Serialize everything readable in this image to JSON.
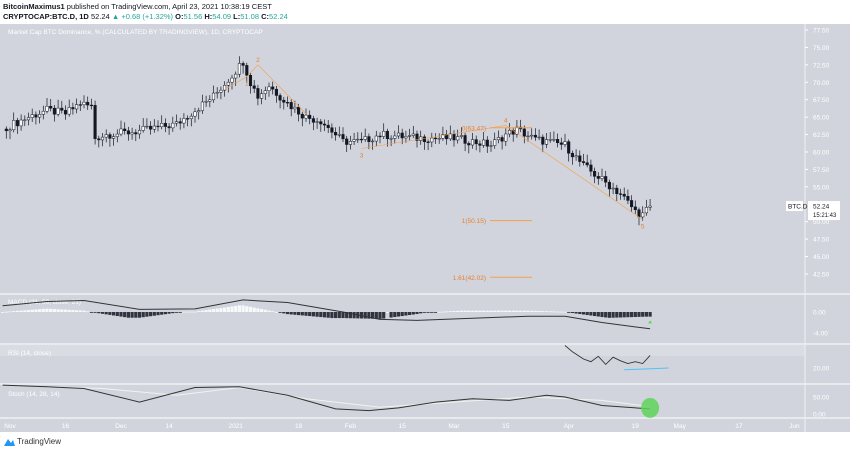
{
  "header": {
    "author": "BitcoinMaximus1",
    "published": "published on TradingView.com, April 23, 2021 10:38:19 CEST",
    "symbol": "CRYPTOCAP:BTC.D, 1D",
    "last": "52.24",
    "change": "+0.68 (+1.32%)",
    "o_label": "O:",
    "o": "51.56",
    "h_label": "H:",
    "h": "54.09",
    "l_label": "L:",
    "l": "51.08",
    "c_label": "C:",
    "c": "52.24"
  },
  "footer": {
    "brand": "TradingView"
  },
  "colors": {
    "bg": "#d1d4dc",
    "fib": "#f5a04b",
    "green": "#5fd35a",
    "blue": "#4fc3f7"
  },
  "chart_data": {
    "type": "candlestick",
    "title": "Market Cap BTC Dominance, % (CALCULATED BY TRADINGVIEW), 1D, CRYPTOCAP",
    "y_ticks": [
      "77.50",
      "75.00",
      "72.50",
      "70.00",
      "67.50",
      "65.00",
      "62.50",
      "60.00",
      "57.50",
      "55.00",
      "50.00",
      "47.50",
      "45.00",
      "42.50"
    ],
    "ylim": [
      42.5,
      77.5
    ],
    "price_label": {
      "symbol": "BTC.D",
      "value": "52.24",
      "countdown": "15:21:43"
    },
    "x_ticks": [
      {
        "label": "Nov",
        "d": 0
      },
      {
        "label": "16",
        "d": 15
      },
      {
        "label": "Dec",
        "d": 30
      },
      {
        "label": "14",
        "d": 43
      },
      {
        "label": "2021",
        "d": 61
      },
      {
        "label": "18",
        "d": 78
      },
      {
        "label": "Feb",
        "d": 92
      },
      {
        "label": "15",
        "d": 106
      },
      {
        "label": "Mar",
        "d": 120
      },
      {
        "label": "15",
        "d": 134
      },
      {
        "label": "Apr",
        "d": 151
      },
      {
        "label": "19",
        "d": 169
      },
      {
        "label": "May",
        "d": 181
      },
      {
        "label": "17",
        "d": 197
      },
      {
        "label": "Jun",
        "d": 212
      }
    ],
    "close_anchors": [
      [
        -2,
        63.3
      ],
      [
        5,
        65
      ],
      [
        10,
        66
      ],
      [
        15,
        65.5
      ],
      [
        19,
        67
      ],
      [
        22,
        66.5
      ],
      [
        23,
        62
      ],
      [
        26,
        62.5
      ],
      [
        35,
        63
      ],
      [
        45,
        64
      ],
      [
        50,
        66
      ],
      [
        55,
        68
      ],
      [
        60,
        71
      ],
      [
        63,
        73
      ],
      [
        65,
        70
      ],
      [
        67,
        68
      ],
      [
        70,
        69.5
      ],
      [
        75,
        67
      ],
      [
        80,
        65
      ],
      [
        84,
        64.5
      ],
      [
        90,
        61.5
      ],
      [
        95,
        61.5
      ],
      [
        100,
        62.5
      ],
      [
        110,
        62
      ],
      [
        120,
        62
      ],
      [
        130,
        61
      ],
      [
        134,
        62.5
      ],
      [
        137,
        63.2
      ],
      [
        142,
        61.8
      ],
      [
        150,
        61
      ],
      [
        155,
        58
      ],
      [
        160,
        56
      ],
      [
        165,
        54
      ],
      [
        169,
        51.5
      ],
      [
        171,
        51
      ],
      [
        173,
        52.24
      ]
    ],
    "waves": [
      {
        "label": "1",
        "d": 64,
        "p": 70.8,
        "below": true
      },
      {
        "label": "2",
        "d": 67,
        "p": 72.5
      },
      {
        "label": "3",
        "d": 95,
        "p": 60.5,
        "below": true
      },
      {
        "label": "4",
        "d": 134,
        "p": 63.8
      },
      {
        "label": "5",
        "d": 171,
        "p": 50.3,
        "below": true
      }
    ],
    "fib": [
      {
        "label": "0(63.47)",
        "p": 63.47
      },
      {
        "label": "1(50.15)",
        "p": 50.15
      },
      {
        "label": "1.61(42.02)",
        "p": 42.02
      }
    ],
    "macd": {
      "title": "MACD (21, 50, close, 21)",
      "ticks": [
        "0.00",
        "-4.00"
      ],
      "line": [
        [
          -2,
          1.2
        ],
        [
          10,
          2
        ],
        [
          20,
          2.2
        ],
        [
          35,
          0.5
        ],
        [
          50,
          0.6
        ],
        [
          63,
          2.3
        ],
        [
          75,
          1.8
        ],
        [
          90,
          0
        ],
        [
          100,
          -1.4
        ],
        [
          110,
          -1.6
        ],
        [
          125,
          -1.2
        ],
        [
          140,
          -0.8
        ],
        [
          150,
          -0.8
        ],
        [
          160,
          -2
        ],
        [
          173,
          -3.2
        ]
      ],
      "signal_marker": "up"
    },
    "rsi": {
      "title": "RSI (14, close)",
      "ticks": [
        "20.00"
      ],
      "line": [
        [
          150,
          45
        ],
        [
          152,
          38
        ],
        [
          155,
          30
        ],
        [
          157,
          27
        ],
        [
          159,
          33
        ],
        [
          161,
          24
        ],
        [
          163,
          32
        ],
        [
          165,
          28
        ],
        [
          167,
          25
        ],
        [
          169,
          27
        ],
        [
          171,
          25
        ],
        [
          173,
          34
        ]
      ],
      "support": [
        [
          166,
          18
        ],
        [
          178,
          20
        ]
      ]
    },
    "stoch": {
      "title": "Stoch (14, 28, 14)",
      "ticks": [
        "50.00",
        "0.00"
      ],
      "k": [
        [
          -2,
          85
        ],
        [
          10,
          80
        ],
        [
          20,
          75
        ],
        [
          35,
          35
        ],
        [
          50,
          78
        ],
        [
          62,
          80
        ],
        [
          75,
          55
        ],
        [
          88,
          15
        ],
        [
          97,
          10
        ],
        [
          105,
          18
        ],
        [
          115,
          35
        ],
        [
          125,
          45
        ],
        [
          135,
          40
        ],
        [
          145,
          55
        ],
        [
          150,
          50
        ],
        [
          160,
          25
        ],
        [
          173,
          15
        ]
      ],
      "d": [
        [
          10,
          80
        ],
        [
          25,
          75
        ],
        [
          45,
          55
        ],
        [
          62,
          78
        ],
        [
          80,
          45
        ],
        [
          100,
          20
        ],
        [
          120,
          35
        ],
        [
          140,
          50
        ],
        [
          160,
          40
        ],
        [
          173,
          22
        ]
      ]
    }
  }
}
